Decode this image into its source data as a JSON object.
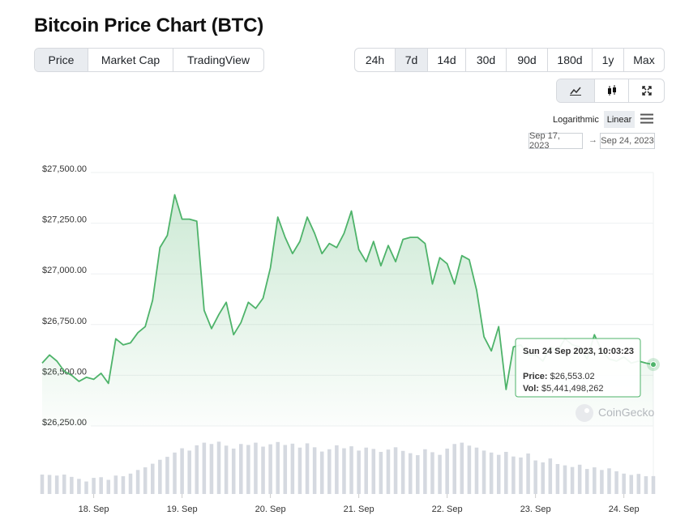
{
  "header": {
    "title": "Bitcoin Price Chart (BTC)"
  },
  "tabs": [
    "Price",
    "Market Cap",
    "TradingView"
  ],
  "ranges": [
    "24h",
    "7d",
    "14d",
    "30d",
    "90d",
    "180d",
    "1y",
    "Max"
  ],
  "scale_options": [
    "Logarithmic",
    "Linear"
  ],
  "date_range": {
    "from": "Sep 17, 2023",
    "separator": "→",
    "to": "Sep 24, 2023"
  },
  "tooltip": {
    "date": "Sun 24 Sep 2023, 10:03:23",
    "price": "$26,553.02",
    "vol": "$5,441,498,262"
  },
  "watermark": "CoinGecko",
  "chart_data": {
    "type": "line",
    "categories": [
      null,
      null,
      null,
      null,
      null,
      null,
      null,
      "18. Sep",
      null,
      null,
      null,
      null,
      null,
      null,
      null,
      null,
      null,
      null,
      null,
      "19. Sep",
      null,
      null,
      null,
      null,
      null,
      null,
      null,
      null,
      null,
      null,
      null,
      "20. Sep",
      null,
      null,
      null,
      null,
      null,
      null,
      null,
      null,
      null,
      null,
      null,
      "21. Sep",
      null,
      null,
      null,
      null,
      null,
      null,
      null,
      null,
      null,
      null,
      null,
      "22. Sep",
      null,
      null,
      null,
      null,
      null,
      null,
      null,
      null,
      null,
      null,
      null,
      "23. Sep",
      null,
      null,
      null,
      null,
      null,
      null,
      null,
      null,
      null,
      null,
      null,
      "24. Sep",
      null,
      null,
      null,
      null
    ],
    "series": [
      {
        "name": "Price:",
        "color": "#4eb36a",
        "values": [
          26560,
          26600,
          26570,
          26520,
          26500,
          26470,
          26490,
          26480,
          26510,
          26460,
          26680,
          26650,
          26660,
          26710,
          26740,
          26870,
          27130,
          27190,
          27390,
          27270,
          27270,
          27260,
          26820,
          26730,
          26800,
          26860,
          26700,
          26760,
          26860,
          26830,
          26880,
          27030,
          27280,
          27180,
          27100,
          27160,
          27280,
          27200,
          27100,
          27150,
          27130,
          27200,
          27310,
          27120,
          27060,
          27160,
          27040,
          27140,
          27060,
          27170,
          27180,
          27180,
          27150,
          26950,
          27080,
          27050,
          26950,
          27090,
          27070,
          26920,
          26690,
          26620,
          26740,
          26430,
          26640,
          26650,
          26600,
          26600,
          26570,
          26640,
          26620,
          26680,
          26650,
          26640,
          26580,
          26700,
          26620,
          26580,
          26570,
          26590,
          26560,
          26570,
          26560,
          26553.02
        ]
      },
      {
        "name": "Vol:",
        "color": "#d5d9e0",
        "axis": "y2",
        "values": [
          5900000000.0,
          5800000000.0,
          5600000000.0,
          5900000000.0,
          5200000000.0,
          4600000000.0,
          3800000000.0,
          4900000000.0,
          5100000000.0,
          4300000000.0,
          5600000000.0,
          5400000000.0,
          6200000000.0,
          7300000000.0,
          8100000000.0,
          9200000000.0,
          10400000000.0,
          11300000000.0,
          12600000000.0,
          13900000000.0,
          13200000000.0,
          14800000000.0,
          15600000000.0,
          15200000000.0,
          15900000000.0,
          14700000000.0,
          13800000000.0,
          15200000000.0,
          14900000000.0,
          15600000000.0,
          14400000000.0,
          15100000000.0,
          15800000000.0,
          14900000000.0,
          15300000000.0,
          14100000000.0,
          15400000000.0,
          14200000000.0,
          12900000000.0,
          13600000000.0,
          14800000000.0,
          13900000000.0,
          14500000000.0,
          13200000000.0,
          14100000000.0,
          13700000000.0,
          12800000000.0,
          13500000000.0,
          14200000000.0,
          13100000000.0,
          12400000000.0,
          11800000000.0,
          13600000000.0,
          12700000000.0,
          11900000000.0,
          13800000000.0,
          15200000000.0,
          15600000000.0,
          14700000000.0,
          14100000000.0,
          13200000000.0,
          12600000000.0,
          11900000000.0,
          12800000000.0,
          11400000000.0,
          11100000000.0,
          12300000000.0,
          10200000000.0,
          9600000000.0,
          10800000000.0,
          9100000000.0,
          8700000000.0,
          8200000000.0,
          8900000000.0,
          7600000000.0,
          8100000000.0,
          7300000000.0,
          7800000000.0,
          6900000000.0,
          6200000000.0,
          5800000000.0,
          6100000000.0,
          5400000000.0,
          5441498262
        ]
      }
    ],
    "ylim": [
      26250,
      27500
    ],
    "yticks": [
      {
        "value": 26250,
        "label": "$26,250.00"
      },
      {
        "value": 26500,
        "label": "$26,500.00"
      },
      {
        "value": 26750,
        "label": "$26,750.00"
      },
      {
        "value": 27000,
        "label": "$27,000.00"
      },
      {
        "value": 27250,
        "label": "$27,250.00"
      },
      {
        "value": 27500,
        "label": "$27,500.00"
      }
    ],
    "y2lim": [
      0,
      16000000000.0
    ],
    "grid": true,
    "log_scale": false
  }
}
